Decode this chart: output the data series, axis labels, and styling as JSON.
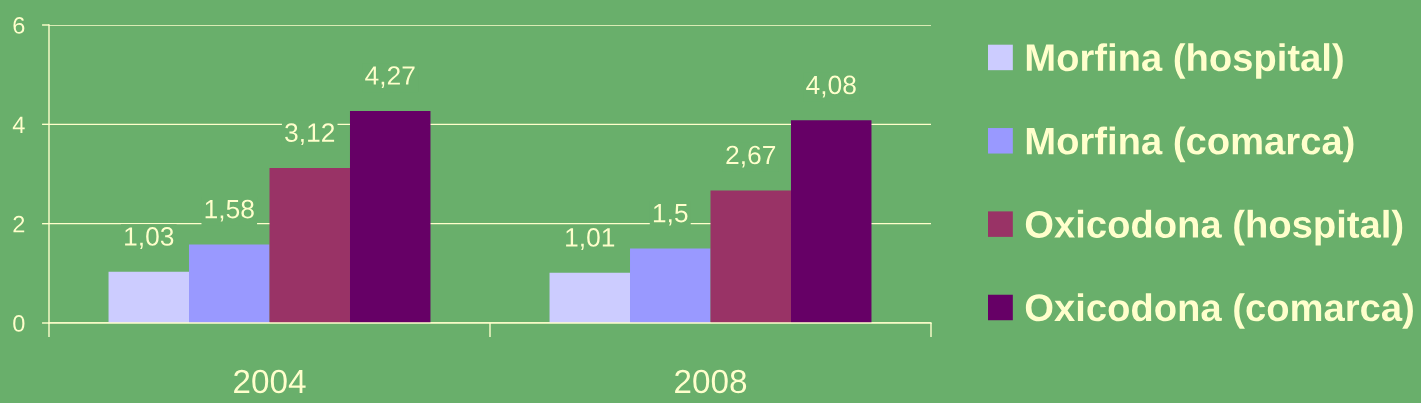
{
  "chart_data": {
    "type": "bar",
    "categories": [
      "2004",
      "2008"
    ],
    "series": [
      {
        "name": "Morfina (hospital)",
        "color": "#ccccff",
        "values": [
          1.03,
          1.01
        ],
        "value_labels": [
          "1,03",
          "1,01"
        ]
      },
      {
        "name": "Morfina (comarca)",
        "color": "#9999ff",
        "values": [
          1.58,
          1.5
        ],
        "value_labels": [
          "1,58",
          "1,5"
        ]
      },
      {
        "name": "Oxicodona (hospital)",
        "color": "#993366",
        "values": [
          3.12,
          2.67
        ],
        "value_labels": [
          "3,12",
          "2,67"
        ]
      },
      {
        "name": "Oxicodona (comarca)",
        "color": "#660066",
        "values": [
          4.27,
          4.08
        ],
        "value_labels": [
          "4,27",
          "4,08"
        ]
      }
    ],
    "ylim": [
      0,
      6
    ],
    "yticks": [
      0,
      2,
      4,
      6
    ],
    "grid": "y",
    "legend": "right"
  }
}
